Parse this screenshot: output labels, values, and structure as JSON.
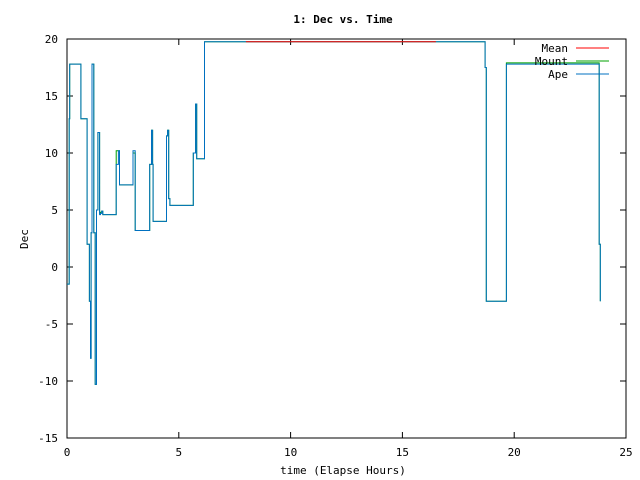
{
  "chart_data": {
    "type": "line",
    "title": "1: Dec vs. Time",
    "xlabel": "time (Elapse Hours)",
    "ylabel": "Dec",
    "xlim": [
      0,
      25
    ],
    "ylim": [
      -15,
      20
    ],
    "x_ticks": [
      0,
      5,
      10,
      15,
      20,
      25
    ],
    "y_ticks": [
      -15,
      -10,
      -5,
      0,
      5,
      10,
      15,
      20
    ],
    "grid": false,
    "legend_position": "top-right",
    "series": [
      {
        "name": "Mean",
        "color": "#ff0000",
        "x": [
          8.0,
          16.5
        ],
        "y": [
          19.75,
          19.75
        ]
      },
      {
        "name": "Mount",
        "color": "#00a000",
        "x": [
          0.0,
          0.1,
          0.12,
          0.6,
          0.62,
          0.9,
          1.0,
          1.05,
          1.08,
          1.12,
          1.16,
          1.2,
          1.26,
          1.32,
          1.38,
          1.42,
          1.46,
          1.5,
          1.55,
          1.6,
          1.75,
          1.9,
          2.1,
          2.2,
          2.3,
          2.35,
          2.45,
          2.5,
          2.85,
          2.95,
          3.05,
          3.1,
          3.6,
          3.7,
          3.78,
          3.83,
          3.85,
          3.9,
          4.4,
          4.45,
          4.5,
          4.55,
          4.6,
          5.6,
          5.65,
          5.75,
          5.8,
          6.1,
          6.15,
          6.5,
          8.0,
          16.5,
          18.6,
          18.7,
          18.75,
          19.6,
          19.65,
          19.75,
          23.7,
          23.75,
          23.8,
          23.85
        ],
        "y": [
          -1.5,
          13.0,
          17.8,
          17.8,
          13.0,
          2.0,
          -3.0,
          -8.0,
          3.0,
          17.8,
          17.8,
          3.0,
          -10.3,
          5.0,
          11.8,
          11.8,
          4.7,
          4.8,
          4.9,
          4.6,
          4.6,
          4.6,
          4.6,
          10.2,
          10.2,
          7.2,
          7.2,
          7.2,
          7.2,
          10.0,
          3.2,
          3.2,
          3.2,
          9.0,
          12.0,
          9.0,
          4.0,
          4.0,
          4.0,
          11.5,
          12.0,
          6.0,
          5.4,
          5.4,
          10.0,
          14.3,
          9.5,
          9.5,
          19.75,
          19.75,
          19.75,
          19.75,
          19.75,
          17.5,
          -3.0,
          -3.0,
          17.9,
          17.9,
          17.9,
          17.9,
          2.0,
          -3.0
        ]
      },
      {
        "name": "Ape",
        "color": "#0070c0",
        "x": [
          0.0,
          0.1,
          0.12,
          0.6,
          0.62,
          0.9,
          1.0,
          1.05,
          1.08,
          1.12,
          1.16,
          1.2,
          1.26,
          1.32,
          1.38,
          1.42,
          1.46,
          1.5,
          1.55,
          1.6,
          1.75,
          1.9,
          2.1,
          2.2,
          2.3,
          2.35,
          2.45,
          2.5,
          2.85,
          2.95,
          3.05,
          3.1,
          3.6,
          3.7,
          3.78,
          3.83,
          3.85,
          3.9,
          4.4,
          4.45,
          4.5,
          4.55,
          4.6,
          5.6,
          5.65,
          5.75,
          5.8,
          6.1,
          6.15,
          6.5,
          8.0,
          16.5,
          18.6,
          18.7,
          18.75,
          19.6,
          19.65,
          19.75,
          23.7,
          23.75,
          23.8,
          23.85
        ],
        "y": [
          -1.5,
          13.0,
          17.8,
          17.8,
          13.0,
          2.0,
          -3.0,
          -8.0,
          3.0,
          17.8,
          17.8,
          3.0,
          -10.3,
          5.0,
          11.8,
          11.8,
          4.6,
          4.7,
          4.9,
          4.6,
          4.6,
          4.6,
          4.6,
          9.0,
          10.2,
          7.2,
          7.2,
          7.2,
          7.2,
          10.2,
          3.2,
          3.2,
          3.2,
          9.0,
          12.0,
          9.0,
          4.0,
          4.0,
          4.0,
          11.5,
          12.0,
          6.0,
          5.4,
          5.4,
          10.0,
          14.3,
          9.5,
          9.5,
          19.75,
          19.75,
          19.75,
          19.75,
          19.75,
          17.5,
          -3.0,
          -3.0,
          17.8,
          17.8,
          17.8,
          17.8,
          2.0,
          -3.0
        ]
      }
    ]
  }
}
